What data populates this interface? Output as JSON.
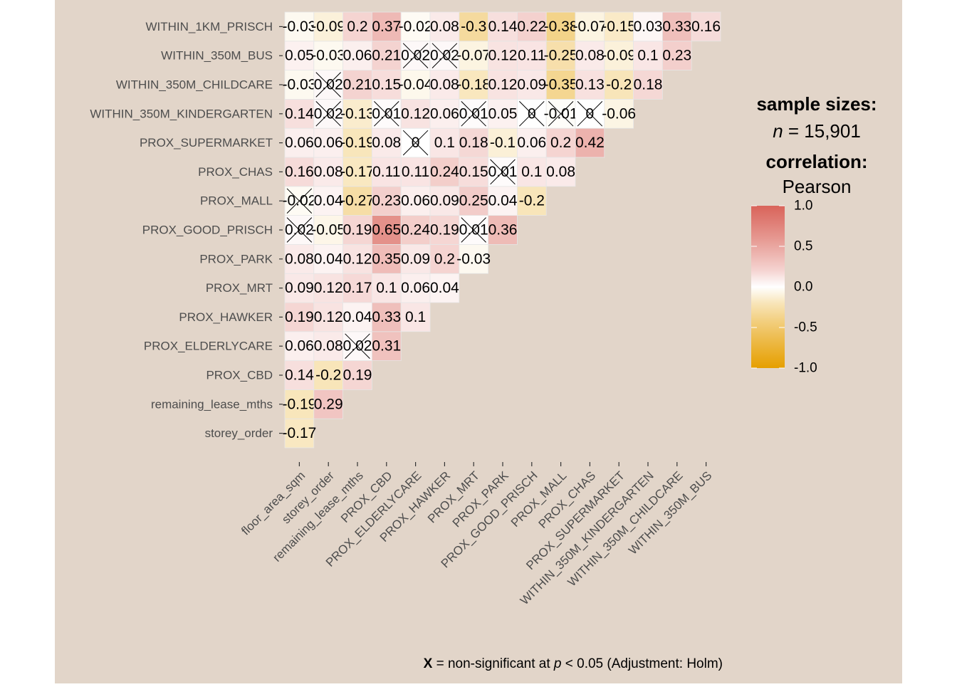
{
  "chart_data": {
    "type": "heatmap",
    "variables": [
      "floor_area_sqm",
      "storey_order",
      "remaining_lease_mths",
      "PROX_CBD",
      "PROX_ELDERLYCARE",
      "PROX_HAWKER",
      "PROX_MRT",
      "PROX_PARK",
      "PROX_GOOD_PRISCH",
      "PROX_MALL",
      "PROX_CHAS",
      "PROX_SUPERMARKET",
      "WITHIN_350M_KINDERGARTEN",
      "WITHIN_350M_CHILDCARE",
      "WITHIN_350M_BUS",
      "WITHIN_1KM_PRISCH"
    ],
    "x_labels": [
      "floor_area_sqm",
      "storey_order",
      "remaining_lease_mths",
      "PROX_CBD",
      "PROX_ELDERLYCARE",
      "PROX_HAWKER",
      "PROX_MRT",
      "PROX_PARK",
      "PROX_GOOD_PRISCH",
      "PROX_MALL",
      "PROX_CHAS",
      "PROX_SUPERMARKET",
      "WITHIN_350M_KINDERGARTEN",
      "WITHIN_350M_CHILDCARE",
      "WITHIN_350M_BUS"
    ],
    "y_labels": [
      "storey_order",
      "remaining_lease_mths",
      "PROX_CBD",
      "PROX_ELDERLYCARE",
      "PROX_HAWKER",
      "PROX_MRT",
      "PROX_PARK",
      "PROX_GOOD_PRISCH",
      "PROX_MALL",
      "PROX_CHAS",
      "PROX_SUPERMARKET",
      "WITHIN_350M_KINDERGARTEN",
      "WITHIN_350M_CHILDCARE",
      "WITHIN_350M_BUS",
      "WITHIN_1KM_PRISCH"
    ],
    "rows": [
      {
        "label": "storey_order",
        "values": [
          -0.17
        ],
        "labels": [
          "-0.17"
        ],
        "nonsig": []
      },
      {
        "label": "remaining_lease_mths",
        "values": [
          -0.19,
          0.29
        ],
        "labels": [
          "-0.19",
          "0.29"
        ],
        "nonsig": []
      },
      {
        "label": "PROX_CBD",
        "values": [
          0.14,
          -0.2,
          0.19
        ],
        "labels": [
          "0.14",
          "-0.2",
          "0.19"
        ],
        "nonsig": []
      },
      {
        "label": "PROX_ELDERLYCARE",
        "values": [
          0.06,
          0.08,
          0.02,
          0.31
        ],
        "labels": [
          "0.06",
          "0.08",
          "0.02",
          "0.31"
        ],
        "nonsig": [
          2
        ]
      },
      {
        "label": "PROX_HAWKER",
        "values": [
          0.19,
          0.12,
          0.04,
          0.33,
          0.1
        ],
        "labels": [
          "0.19",
          "0.12",
          "0.04",
          "0.33",
          "0.1"
        ],
        "nonsig": []
      },
      {
        "label": "PROX_MRT",
        "values": [
          0.09,
          0.12,
          0.17,
          0.1,
          0.06,
          0.04
        ],
        "labels": [
          "0.09",
          "0.12",
          "0.17",
          "0.1",
          "0.06",
          "0.04"
        ],
        "nonsig": []
      },
      {
        "label": "PROX_PARK",
        "values": [
          0.08,
          0.04,
          0.12,
          0.35,
          0.09,
          0.2,
          -0.03
        ],
        "labels": [
          "0.08",
          "0.04",
          "0.12",
          "0.35",
          "0.09",
          "0.2",
          "-0.03"
        ],
        "nonsig": []
      },
      {
        "label": "PROX_GOOD_PRISCH",
        "values": [
          0.02,
          -0.05,
          0.19,
          0.65,
          0.24,
          0.19,
          0.01,
          0.36
        ],
        "labels": [
          "0.02",
          "-0.05",
          "0.19",
          "0.65",
          "0.24",
          "0.19",
          "0.01",
          "0.36"
        ],
        "nonsig": [
          0,
          6
        ]
      },
      {
        "label": "PROX_MALL",
        "values": [
          -0.02,
          0.04,
          -0.27,
          0.23,
          0.06,
          0.09,
          0.25,
          0.04,
          -0.2
        ],
        "labels": [
          "-0.02",
          "0.04",
          "-0.27",
          "0.23",
          "0.06",
          "0.09",
          "0.25",
          "0.04",
          "-0.2"
        ],
        "nonsig": [
          0
        ]
      },
      {
        "label": "PROX_CHAS",
        "values": [
          0.16,
          0.08,
          -0.17,
          0.11,
          0.11,
          0.24,
          0.15,
          0.01,
          0.1,
          0.08
        ],
        "labels": [
          "0.16",
          "0.08",
          "-0.17",
          "0.11",
          "0.11",
          "0.24",
          "0.15",
          "0.01",
          "0.1",
          "0.08"
        ],
        "nonsig": [
          7
        ]
      },
      {
        "label": "PROX_SUPERMARKET",
        "values": [
          0.06,
          0.06,
          -0.19,
          0.08,
          0,
          0.1,
          0.18,
          -0.1,
          0.06,
          0.2,
          0.42
        ],
        "labels": [
          "0.06",
          "0.06",
          "-0.19",
          "0.08",
          "0",
          "0.1",
          "0.18",
          "-0.1",
          "0.06",
          "0.2",
          "0.42"
        ],
        "nonsig": [
          4
        ]
      },
      {
        "label": "WITHIN_350M_KINDERGARTEN",
        "values": [
          0.14,
          0.02,
          -0.13,
          0.01,
          0.12,
          0.06,
          0.01,
          0.05,
          0,
          -0.01,
          0,
          -0.06
        ],
        "labels": [
          "0.14",
          "0.02",
          "-0.13",
          "0.01",
          "0.12",
          "0.06",
          "0.01",
          "0.05",
          "0",
          "-0.01",
          "0",
          "-0.06"
        ],
        "nonsig": [
          1,
          3,
          6,
          8,
          9,
          10
        ]
      },
      {
        "label": "WITHIN_350M_CHILDCARE",
        "values": [
          -0.03,
          0.02,
          0.21,
          0.15,
          -0.04,
          0.08,
          -0.18,
          0.12,
          0.09,
          -0.35,
          0.13,
          -0.2,
          0.18
        ],
        "labels": [
          "-0.03",
          "0.02",
          "0.21",
          "0.15",
          "-0.04",
          "0.08",
          "-0.18",
          "0.12",
          "0.09",
          "-0.35",
          "0.13",
          "-0.2",
          "0.18"
        ],
        "nonsig": [
          1
        ]
      },
      {
        "label": "WITHIN_350M_BUS",
        "values": [
          0.05,
          -0.03,
          0.06,
          0.21,
          0.02,
          0.02,
          -0.07,
          0.12,
          0.11,
          -0.25,
          0.08,
          -0.09,
          0.1,
          0.23
        ],
        "labels": [
          "0.05",
          "-0.03",
          "0.06",
          "0.21",
          "0.02",
          "0.02",
          "-0.07",
          "0.12",
          "0.11",
          "-0.25",
          "0.08",
          "-0.09",
          "0.1",
          "0.23"
        ],
        "nonsig": [
          4,
          5
        ]
      },
      {
        "label": "WITHIN_1KM_PRISCH",
        "values": [
          -0.03,
          -0.09,
          0.2,
          0.37,
          -0.02,
          0.08,
          -0.3,
          0.14,
          0.22,
          -0.38,
          -0.07,
          -0.15,
          0.03,
          0.33,
          0.16
        ],
        "labels": [
          "-0.03",
          "-0.09",
          "0.2",
          "0.37",
          "-0.02",
          "0.08",
          "-0.3",
          "0.14",
          "0.22",
          "-0.38",
          "-0.07",
          "-0.15",
          "0.03",
          "0.33",
          "0.16"
        ],
        "nonsig": []
      }
    ],
    "color_scale": {
      "low": "#E69F00",
      "mid": "#FFFFFF",
      "high": "#D55E00",
      "high_display": "#D9645A",
      "limits": [
        -1,
        1
      ]
    },
    "legend": {
      "sample_title": "sample sizes:",
      "n_label": "n",
      "n_text": " = 15,901",
      "corr_title": "correlation:",
      "corr_method": "Pearson",
      "ticks": [
        "1.0",
        "0.5",
        "0.0",
        "-0.5",
        "-1.0"
      ],
      "tick_values": [
        1,
        0.5,
        0,
        -0.5,
        -1
      ],
      "placement": "right"
    },
    "caption": {
      "x": "X",
      "p": "p",
      "before_p": " = non-significant at ",
      "after_p": " < 0.05 (Adjustment: Holm)"
    }
  },
  "colors": {
    "panel_background": "#E2D5C9",
    "page_background": "#FFFFFF"
  }
}
